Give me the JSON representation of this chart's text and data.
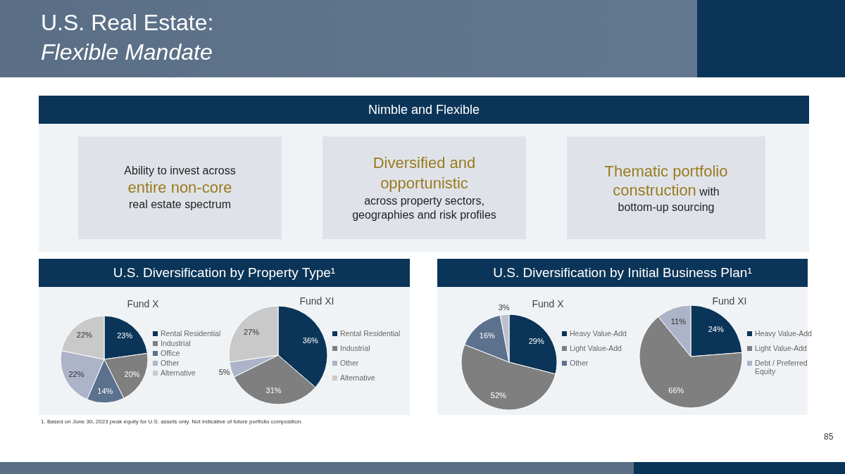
{
  "chart_data": [
    {
      "type": "other",
      "title": "U.S. Real Estate:",
      "subtitle": "Flexible Mandate",
      "annotations": [
        "Nimble and Flexible",
        "Ability to invest across",
        "entire non-core",
        "real estate spectrum",
        "Diversified and opportunistic",
        "across property sectors, geographies and risk profiles",
        "Thematic portfolio construction",
        "with",
        "bottom-up sourcing",
        "U.S. Diversification by Property Type¹",
        "U.S. Diversification by Initial Business Plan¹",
        "1. Based on June 30, 2023 peak equity for U.S. assets only. Not indicative of future portfolio composition.",
        "85"
      ]
    },
    {
      "type": "pie",
      "title": "Fund X",
      "categories": [
        "Rental Residential",
        "Industrial",
        "Office",
        "Other",
        "Alternative"
      ],
      "values": [
        23,
        20,
        14,
        22,
        22
      ],
      "value_labels": [
        "23%",
        "20%",
        "14%",
        "22%",
        "22%"
      ],
      "colors": [
        "#0b3558",
        "#7f7f7f",
        "#5b718d",
        "#adb3c8",
        "#c9c9c9"
      ],
      "legend": "right"
    },
    {
      "type": "pie",
      "title": "Fund XI",
      "categories": [
        "Rental Residential",
        "Industrial",
        "Other",
        "Alternative"
      ],
      "values": [
        36,
        31,
        5,
        27
      ],
      "value_labels": [
        "36%",
        "31%",
        "5%",
        "27%"
      ],
      "colors": [
        "#0b3558",
        "#7f7f7f",
        "#adb3c8",
        "#c9c9c9"
      ],
      "legend": "right"
    },
    {
      "type": "pie",
      "title": "Fund X",
      "categories": [
        "Heavy Value-Add",
        "Light Value-Add",
        "Other",
        null
      ],
      "values": [
        29,
        52,
        16,
        3
      ],
      "value_labels": [
        "29%",
        "52%",
        "16%",
        "3%"
      ],
      "colors": [
        "#0b3558",
        "#7f7f7f",
        "#5b718d",
        "#bcc0cf"
      ],
      "legend": "right"
    },
    {
      "type": "pie",
      "title": "Fund XI",
      "categories": [
        "Heavy Value-Add",
        "Light Value-Add",
        "Debt / Preferred Equity"
      ],
      "values": [
        24,
        66,
        11
      ],
      "value_labels": [
        "24%",
        "66%",
        "11%"
      ],
      "colors": [
        "#0b3558",
        "#7f7f7f",
        "#adb3c8"
      ],
      "legend": "right"
    }
  ]
}
